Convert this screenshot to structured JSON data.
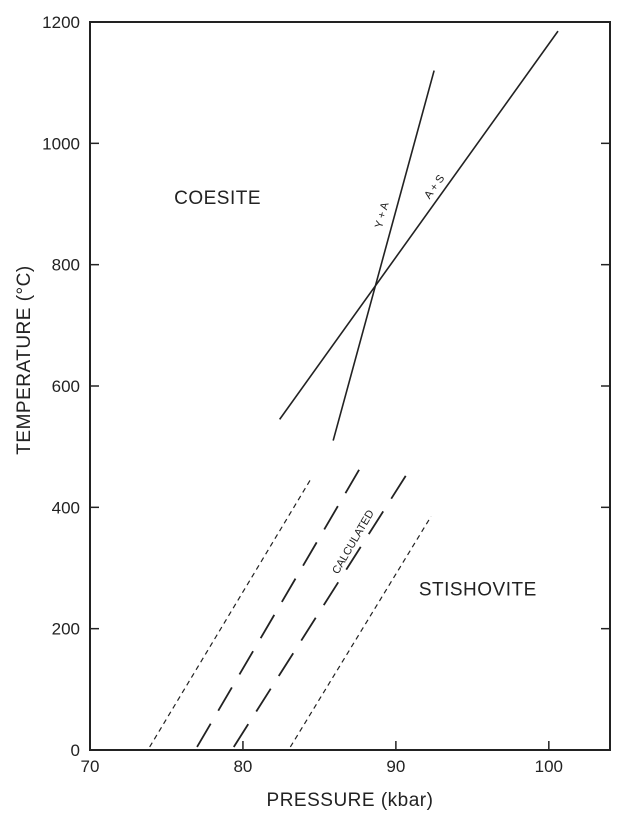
{
  "chart_data": {
    "type": "line",
    "xlabel": "PRESSURE (kbar)",
    "ylabel": "TEMPERATURE (°C)",
    "xlim": [
      70,
      104
    ],
    "ylim": [
      0,
      1200
    ],
    "x_ticks": [
      "70",
      "80",
      "90",
      "100"
    ],
    "y_ticks": [
      "0",
      "200",
      "400",
      "600",
      "800",
      "1000",
      "1200"
    ],
    "grid": false,
    "legend": "none",
    "regions": [
      {
        "label": "COESITE",
        "x": 75.5,
        "y": 900
      },
      {
        "label": "STISHOVITE",
        "x": 91.5,
        "y": 255
      }
    ],
    "series": [
      {
        "name": "Y + A",
        "style": "solid",
        "x": [
          85.9,
          92.5
        ],
        "y": [
          510,
          1120
        ],
        "label_at": [
          89.3,
          880
        ]
      },
      {
        "name": "A + S",
        "style": "solid",
        "x": [
          82.4,
          100.6
        ],
        "y": [
          545,
          1185
        ],
        "label_at": [
          92.7,
          925
        ]
      },
      {
        "name": "CALCULATED",
        "style": "long-dash",
        "x": [
          77.0,
          87.9
        ],
        "y": [
          5,
          475
        ],
        "label_at": [
          87.4,
          340
        ]
      },
      {
        "style": "long-dash",
        "x": [
          79.4,
          91.1
        ],
        "y": [
          5,
          470
        ]
      },
      {
        "style": "short-dash",
        "x": [
          73.9,
          84.4
        ],
        "y": [
          5,
          445
        ]
      },
      {
        "style": "short-dash",
        "x": [
          83.1,
          92.3
        ],
        "y": [
          5,
          385
        ]
      }
    ],
    "colors": {
      "ink": "#222222",
      "background": "#ffffff"
    }
  }
}
